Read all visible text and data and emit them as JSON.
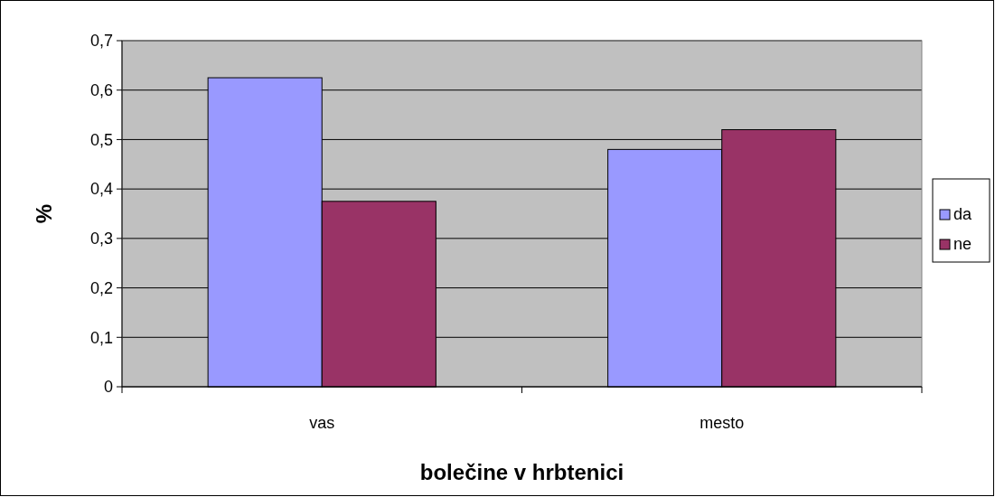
{
  "chart_data": {
    "type": "bar",
    "xlabel": "bolečine v hrbtenici",
    "ylabel": "%",
    "categories": [
      "vas",
      "mesto"
    ],
    "series": [
      {
        "name": "da",
        "color": "#9999ff",
        "values": [
          0.625,
          0.48
        ]
      },
      {
        "name": "ne",
        "color": "#993366",
        "values": [
          0.375,
          0.52
        ]
      }
    ],
    "ylim": [
      0,
      0.7
    ],
    "yticks": [
      {
        "value": 0,
        "label": "0"
      },
      {
        "value": 0.1,
        "label": "0,1"
      },
      {
        "value": 0.2,
        "label": "0,2"
      },
      {
        "value": 0.3,
        "label": "0,3"
      },
      {
        "value": 0.4,
        "label": "0,4"
      },
      {
        "value": 0.5,
        "label": "0,5"
      },
      {
        "value": 0.6,
        "label": "0,6"
      },
      {
        "value": 0.7,
        "label": "0,7"
      }
    ],
    "grid": "y",
    "legend": "right"
  }
}
